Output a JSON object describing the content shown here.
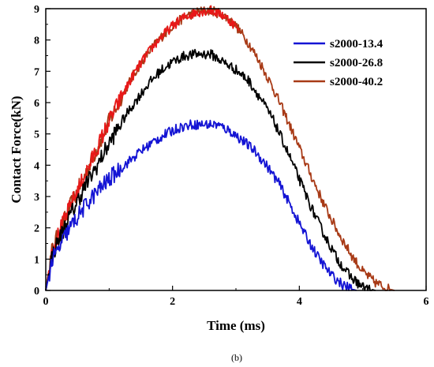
{
  "chart_data": {
    "type": "line",
    "title": "",
    "xlabel": "Time (ms)",
    "ylabel": "Contact Force(kN)",
    "caption": "(b)",
    "xlim": [
      0,
      6
    ],
    "ylim": [
      0,
      9
    ],
    "xticks": [
      "0",
      "2",
      "4",
      "6"
    ],
    "yticks": [
      "0",
      "1",
      "2",
      "3",
      "4",
      "5",
      "6",
      "7",
      "8",
      "9"
    ],
    "legend_position": "top-right",
    "grid": false,
    "series": [
      {
        "name": "s2000-13.4",
        "color": "#1414d4",
        "x": [
          0,
          0.1,
          0.2,
          0.35,
          0.5,
          0.7,
          0.9,
          1.1,
          1.3,
          1.5,
          1.7,
          1.9,
          2.1,
          2.3,
          2.5,
          2.7,
          2.9,
          3.1,
          3.3,
          3.5,
          3.7,
          3.9,
          4.1,
          4.3,
          4.5,
          4.7,
          4.85,
          4.9
        ],
        "y": [
          0,
          0.95,
          1.3,
          1.9,
          2.35,
          2.9,
          3.35,
          3.75,
          4.1,
          4.45,
          4.75,
          5.0,
          5.2,
          5.3,
          5.3,
          5.3,
          5.1,
          4.8,
          4.45,
          3.95,
          3.35,
          2.55,
          1.75,
          1.05,
          0.5,
          0.15,
          0.03,
          0
        ]
      },
      {
        "name": "s2000-26.8",
        "color": "#000000",
        "x": [
          0,
          0.1,
          0.2,
          0.4,
          0.6,
          0.8,
          1.0,
          1.2,
          1.4,
          1.6,
          1.8,
          2.0,
          2.2,
          2.4,
          2.6,
          2.8,
          3.0,
          3.2,
          3.4,
          3.6,
          3.8,
          4.0,
          4.2,
          4.4,
          4.6,
          4.8,
          5.0,
          5.2
        ],
        "y": [
          0,
          1.1,
          1.6,
          2.45,
          3.25,
          3.95,
          4.7,
          5.4,
          6.0,
          6.55,
          7.0,
          7.3,
          7.5,
          7.55,
          7.55,
          7.3,
          7.05,
          6.7,
          6.1,
          5.4,
          4.5,
          3.55,
          2.6,
          1.75,
          1.0,
          0.45,
          0.1,
          0
        ]
      },
      {
        "name": "s2000-40.2",
        "color": "#a83a16",
        "x": [
          0,
          0.1,
          0.2,
          0.4,
          0.6,
          0.8,
          1.0,
          1.2,
          1.4,
          1.6,
          1.8,
          2.0,
          2.2,
          2.4,
          2.6,
          2.8,
          3.0,
          3.2,
          3.4,
          3.6,
          3.8,
          4.0,
          4.2,
          4.4,
          4.6,
          4.8,
          5.0,
          5.2,
          5.4,
          5.5
        ],
        "y": [
          0,
          1.3,
          1.8,
          2.75,
          3.6,
          4.5,
          5.4,
          6.2,
          6.95,
          7.55,
          8.05,
          8.45,
          8.75,
          8.9,
          8.95,
          8.8,
          8.45,
          7.9,
          7.2,
          6.4,
          5.5,
          4.55,
          3.6,
          2.7,
          1.9,
          1.2,
          0.6,
          0.25,
          0.05,
          0
        ]
      },
      {
        "name": "",
        "color": "#e81818",
        "x": [
          0,
          0.1,
          0.2,
          0.4,
          0.6,
          0.8,
          1.0,
          1.2,
          1.4,
          1.6,
          1.8,
          2.0,
          2.2,
          2.4,
          2.6,
          2.8,
          3.0,
          3.05
        ],
        "y": [
          0,
          1.3,
          1.8,
          2.75,
          3.6,
          4.5,
          5.4,
          6.2,
          6.95,
          7.55,
          8.05,
          8.45,
          8.75,
          8.9,
          8.95,
          8.8,
          8.45,
          8.3
        ]
      }
    ]
  }
}
